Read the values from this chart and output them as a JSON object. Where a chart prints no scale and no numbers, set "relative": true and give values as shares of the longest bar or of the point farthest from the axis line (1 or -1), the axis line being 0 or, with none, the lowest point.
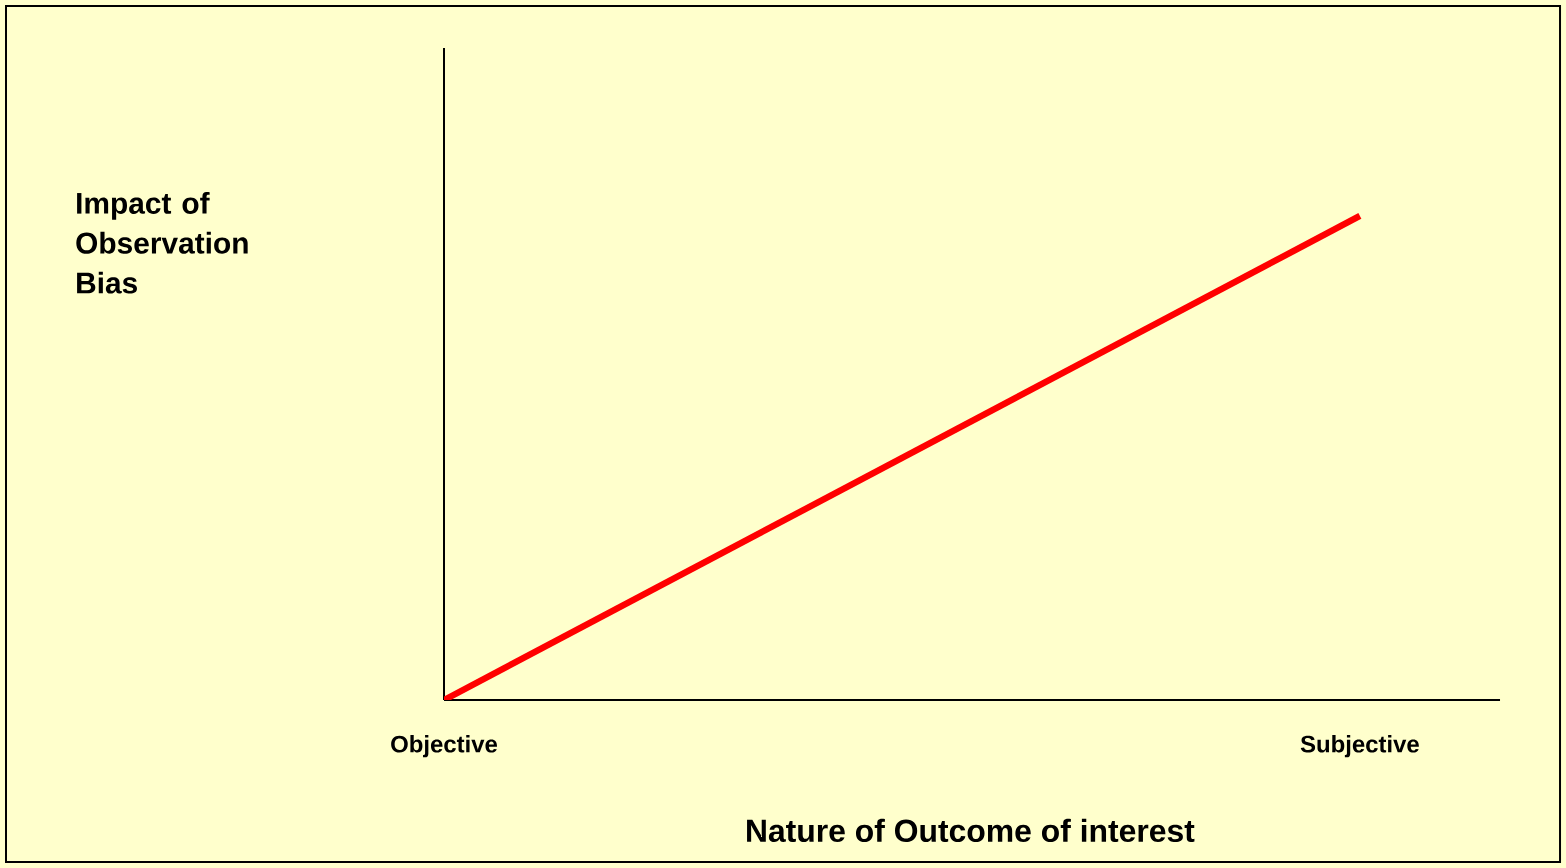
{
  "chart_data": {
    "type": "line",
    "xlabel": "Nature of Outcome of interest",
    "ylabel": "Impact of Observation Bias",
    "categories": [
      "Objective",
      "Subjective"
    ],
    "series": [
      {
        "color": "#ff0000",
        "values": [
          0,
          1
        ]
      }
    ],
    "relative": true,
    "marker": "none",
    "line_style": "solid"
  }
}
